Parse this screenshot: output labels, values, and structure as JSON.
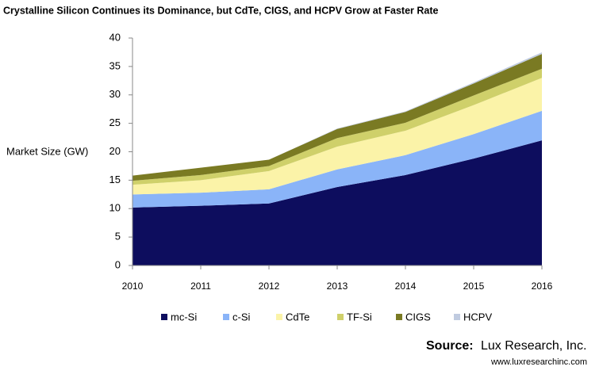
{
  "chart_data": {
    "type": "stacked_area",
    "title": "Crystalline Silicon Continues its Dominance, but CdTe, CIGS, and HCPV Grow at Faster Rate",
    "ylabel": "Market Size (GW)",
    "categories": [
      "2010",
      "2011",
      "2012",
      "2013",
      "2014",
      "2015",
      "2016"
    ],
    "series": [
      {
        "name": "mc-Si",
        "color": "#0d0d5e",
        "values": [
          10.2,
          10.5,
          10.9,
          13.8,
          15.9,
          18.8,
          22.0
        ]
      },
      {
        "name": "c-Si",
        "color": "#8ab4f8",
        "values": [
          2.3,
          2.3,
          2.5,
          3.1,
          3.5,
          4.3,
          5.2
        ]
      },
      {
        "name": "CdTe",
        "color": "#fbf3a8",
        "values": [
          1.7,
          2.2,
          3.2,
          4.0,
          4.3,
          5.1,
          5.8
        ]
      },
      {
        "name": "TF-Si",
        "color": "#cfd06a",
        "values": [
          0.7,
          0.9,
          0.9,
          1.5,
          1.4,
          1.7,
          1.6
        ]
      },
      {
        "name": "CIGS",
        "color": "#7a7a23",
        "values": [
          0.9,
          1.3,
          1.1,
          1.6,
          1.9,
          2.1,
          2.6
        ]
      },
      {
        "name": "HCPV",
        "color": "#c0cbe0",
        "values": [
          0,
          0,
          0,
          0.1,
          0.1,
          0.2,
          0.3
        ]
      }
    ],
    "ylim": [
      0,
      40
    ],
    "yticks": [
      0,
      5,
      10,
      15,
      20,
      25,
      30,
      35,
      40
    ],
    "legend": "bottom",
    "source_label": "Source:",
    "source": "Lux Research, Inc.",
    "url": "www.luxresearchinc.com"
  }
}
